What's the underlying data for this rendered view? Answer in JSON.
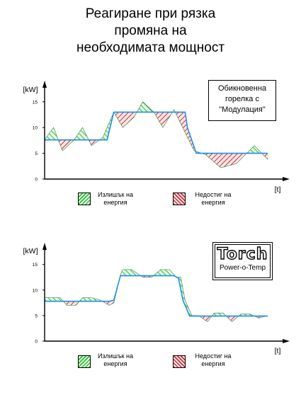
{
  "title": {
    "line1": "Реагиране при рязка",
    "line2": "промяна на",
    "line3": "необходимата мощност"
  },
  "colors": {
    "excess": "#2fbf3a",
    "deficit": "#c8323c",
    "supply_line": "#1f8fe6",
    "demand_line": "#1a7a2a"
  },
  "chart_data": [
    {
      "type": "area",
      "name_box": "Обикновенна горелка с \"Модулация\"",
      "name_box_lines": [
        "Обикновенна",
        "горелка с",
        "\"Модулация\""
      ],
      "ylabel": "[kW]",
      "xlabel": "[t]",
      "yticks": [
        0,
        5,
        10,
        15
      ],
      "ylim": [
        0,
        18
      ],
      "demand": {
        "x": [
          0,
          4,
          8,
          13,
          17,
          21,
          26,
          31,
          35,
          40,
          44,
          49,
          53,
          58,
          63,
          67,
          72,
          79,
          86,
          94,
          100
        ],
        "y": [
          7.6,
          10,
          5.5,
          7.5,
          10,
          6.5,
          8,
          13,
          10,
          12,
          15,
          13,
          10,
          13.5,
          9,
          5.5,
          4.8,
          2.2,
          3,
          6.5,
          3.8
        ]
      },
      "supply": {
        "x": [
          0,
          28,
          31,
          37,
          63,
          64,
          68,
          73,
          100
        ],
        "y": [
          7.6,
          7.6,
          13,
          13,
          13,
          10,
          5,
          5,
          5
        ]
      },
      "legend": [
        {
          "label_lines": [
            "Излишък на",
            "енергия"
          ],
          "kind": "excess"
        },
        {
          "label_lines": [
            "Недостиг на",
            "енергия"
          ],
          "kind": "deficit"
        }
      ]
    },
    {
      "type": "area",
      "name_box": "Torch Power-o-Temp",
      "logo_text": "Torch",
      "logo_subtext": "Power-o-Temp",
      "ylabel": "[kW]",
      "xlabel": "[t]",
      "yticks": [
        0,
        5,
        10,
        15
      ],
      "ylim": [
        0,
        18
      ],
      "demand": {
        "x": [
          0,
          2,
          7,
          10,
          14,
          17,
          21,
          25,
          29,
          31,
          34,
          35,
          39,
          44,
          48,
          52,
          56,
          59,
          61,
          63,
          66,
          69,
          73,
          76,
          80,
          84,
          88,
          92,
          96,
          100
        ],
        "y": [
          8.5,
          8.5,
          8.5,
          7,
          7,
          8.5,
          8.5,
          8,
          7,
          7.5,
          13,
          14,
          14,
          12.5,
          12.5,
          14,
          14,
          12.5,
          12.5,
          8,
          5,
          5,
          3.8,
          5.5,
          5.5,
          3.8,
          5.3,
          5.3,
          4.5,
          5
        ]
      },
      "supply": {
        "x": [
          0,
          29,
          31,
          34,
          58,
          60,
          62,
          65,
          100
        ],
        "y": [
          7.8,
          7.8,
          8,
          12.8,
          12.8,
          12.3,
          8,
          4.9,
          4.9
        ]
      },
      "legend": [
        {
          "label_lines": [
            "Излишък на",
            "енергия"
          ],
          "kind": "excess"
        },
        {
          "label_lines": [
            "Недостиг на",
            "енергия"
          ],
          "kind": "deficit"
        }
      ]
    }
  ]
}
